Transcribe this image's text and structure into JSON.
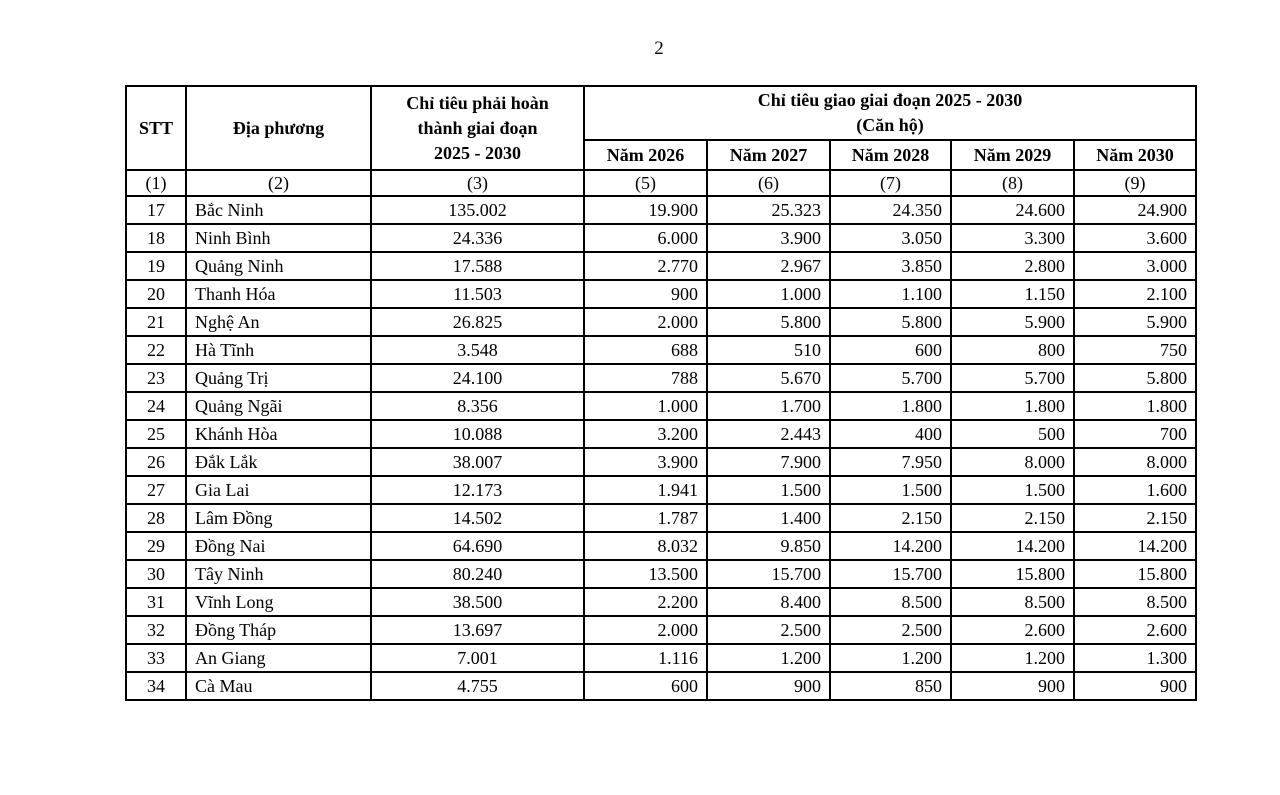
{
  "page": {
    "number": "2"
  },
  "colors": {
    "background": "#ffffff",
    "text": "#000000",
    "table_border": "#000000"
  },
  "table": {
    "headers": {
      "stt": "STT",
      "locality": "Địa phương",
      "target_total": "Chỉ tiêu phải hoàn\nthành giai đoạn\n2025 - 2030",
      "target_group": "Chỉ tiêu giao giai đoạn 2025 - 2030\n(Căn hộ)",
      "years": [
        "Năm 2026",
        "Năm 2027",
        "Năm 2028",
        "Năm 2029",
        "Năm 2030"
      ],
      "indices": [
        "(1)",
        "(2)",
        "(3)",
        "(5)",
        "(6)",
        "(7)",
        "(8)",
        "(9)"
      ]
    },
    "rows": [
      {
        "stt": "17",
        "locality": "Bắc Ninh",
        "total": "135.002",
        "values": [
          "19.900",
          "25.323",
          "24.350",
          "24.600",
          "24.900"
        ]
      },
      {
        "stt": "18",
        "locality": "Ninh Bình",
        "total": "24.336",
        "values": [
          "6.000",
          "3.900",
          "3.050",
          "3.300",
          "3.600"
        ]
      },
      {
        "stt": "19",
        "locality": "Quảng Ninh",
        "total": "17.588",
        "values": [
          "2.770",
          "2.967",
          "3.850",
          "2.800",
          "3.000"
        ]
      },
      {
        "stt": "20",
        "locality": "Thanh Hóa",
        "total": "11.503",
        "values": [
          "900",
          "1.000",
          "1.100",
          "1.150",
          "2.100"
        ]
      },
      {
        "stt": "21",
        "locality": "Nghệ An",
        "total": "26.825",
        "values": [
          "2.000",
          "5.800",
          "5.800",
          "5.900",
          "5.900"
        ]
      },
      {
        "stt": "22",
        "locality": "Hà Tĩnh",
        "total": "3.548",
        "values": [
          "688",
          "510",
          "600",
          "800",
          "750"
        ]
      },
      {
        "stt": "23",
        "locality": "Quảng Trị",
        "total": "24.100",
        "values": [
          "788",
          "5.670",
          "5.700",
          "5.700",
          "5.800"
        ]
      },
      {
        "stt": "24",
        "locality": "Quảng Ngãi",
        "total": "8.356",
        "values": [
          "1.000",
          "1.700",
          "1.800",
          "1.800",
          "1.800"
        ]
      },
      {
        "stt": "25",
        "locality": "Khánh Hòa",
        "total": "10.088",
        "values": [
          "3.200",
          "2.443",
          "400",
          "500",
          "700"
        ]
      },
      {
        "stt": "26",
        "locality": "Đắk Lắk",
        "total": "38.007",
        "values": [
          "3.900",
          "7.900",
          "7.950",
          "8.000",
          "8.000"
        ]
      },
      {
        "stt": "27",
        "locality": "Gia Lai",
        "total": "12.173",
        "values": [
          "1.941",
          "1.500",
          "1.500",
          "1.500",
          "1.600"
        ]
      },
      {
        "stt": "28",
        "locality": "Lâm Đồng",
        "total": "14.502",
        "values": [
          "1.787",
          "1.400",
          "2.150",
          "2.150",
          "2.150"
        ]
      },
      {
        "stt": "29",
        "locality": "Đồng Nai",
        "total": "64.690",
        "values": [
          "8.032",
          "9.850",
          "14.200",
          "14.200",
          "14.200"
        ]
      },
      {
        "stt": "30",
        "locality": "Tây Ninh",
        "total": "80.240",
        "values": [
          "13.500",
          "15.700",
          "15.700",
          "15.800",
          "15.800"
        ]
      },
      {
        "stt": "31",
        "locality": "Vĩnh Long",
        "total": "38.500",
        "values": [
          "2.200",
          "8.400",
          "8.500",
          "8.500",
          "8.500"
        ]
      },
      {
        "stt": "32",
        "locality": "Đồng Tháp",
        "total": "13.697",
        "values": [
          "2.000",
          "2.500",
          "2.500",
          "2.600",
          "2.600"
        ]
      },
      {
        "stt": "33",
        "locality": "An Giang",
        "total": "7.001",
        "values": [
          "1.116",
          "1.200",
          "1.200",
          "1.200",
          "1.300"
        ]
      },
      {
        "stt": "34",
        "locality": "Cà Mau",
        "total": "4.755",
        "values": [
          "600",
          "900",
          "850",
          "900",
          "900"
        ]
      }
    ]
  }
}
